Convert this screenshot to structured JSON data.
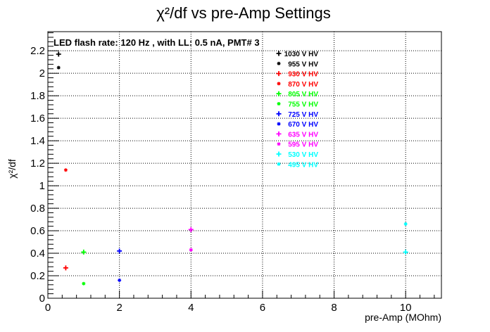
{
  "chart_data": {
    "type": "scatter",
    "title": "χ²/df vs pre-Amp Settings",
    "annotation": "LED flash rate: 120 Hz , with LL: 0.5 nA, PMT# 3",
    "xlabel": "pre-Amp (MOhm)",
    "ylabel": "χ²/df",
    "xlim": [
      0,
      11
    ],
    "ylim": [
      0,
      2.37
    ],
    "xticks": [
      0,
      2,
      4,
      6,
      8,
      10
    ],
    "yticks": [
      0,
      0.2,
      0.4,
      0.6,
      0.8,
      1,
      1.2,
      1.4,
      1.6,
      1.8,
      2,
      2.2
    ],
    "grid": true,
    "legend_position": "top-right",
    "series": [
      {
        "name": "1030 V HV",
        "color": "#000000",
        "marker": "plus",
        "points": [
          [
            0.3,
            2.17
          ]
        ]
      },
      {
        "name": "955 V HV",
        "color": "#000000",
        "marker": "star",
        "points": [
          [
            0.3,
            2.05
          ]
        ]
      },
      {
        "name": "930 V HV",
        "color": "#ff0000",
        "marker": "plus",
        "points": [
          [
            0.5,
            0.27
          ]
        ]
      },
      {
        "name": "870 V HV",
        "color": "#ff0000",
        "marker": "star",
        "points": [
          [
            0.5,
            1.14
          ]
        ]
      },
      {
        "name": "805 V HV",
        "color": "#00ff00",
        "marker": "plus",
        "points": [
          [
            1.0,
            0.41
          ]
        ]
      },
      {
        "name": "755 V HV",
        "color": "#00ff00",
        "marker": "star",
        "points": [
          [
            1.0,
            0.13
          ]
        ]
      },
      {
        "name": "725 V HV",
        "color": "#0000ff",
        "marker": "plus",
        "points": [
          [
            2.0,
            0.42
          ]
        ]
      },
      {
        "name": "670 V HV",
        "color": "#0000ff",
        "marker": "star",
        "points": [
          [
            2.0,
            0.16
          ]
        ]
      },
      {
        "name": "635 V HV",
        "color": "#ff00ff",
        "marker": "plus",
        "points": [
          [
            4.0,
            0.61
          ]
        ]
      },
      {
        "name": "595 V HV",
        "color": "#ff00ff",
        "marker": "star",
        "points": [
          [
            4.0,
            0.43
          ]
        ]
      },
      {
        "name": "530 V HV",
        "color": "#00ffff",
        "marker": "plus",
        "points": [
          [
            10.0,
            0.41
          ]
        ]
      },
      {
        "name": "495 V HV",
        "color": "#00ffff",
        "marker": "star",
        "points": [
          [
            10.0,
            0.66
          ]
        ]
      }
    ]
  }
}
